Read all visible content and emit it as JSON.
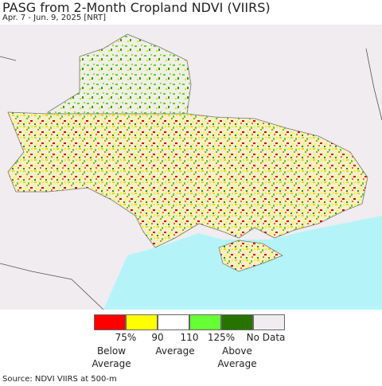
{
  "header": {
    "title": "PASG from 2-Month Cropland NDVI (VIIRS)",
    "subtitle": "Apr. 7 - Jun. 9, 2025 [NRT]"
  },
  "legend": {
    "colors": [
      "#ff0000",
      "#ffff00",
      "#ffffff",
      "#66ff33",
      "#267300",
      "#f0ecf0"
    ],
    "tick_labels": [
      "75%",
      "90",
      "110",
      "125%"
    ],
    "no_data": "No Data",
    "category_labels": [
      "Below Average",
      "Average",
      "Above Average"
    ]
  },
  "footer": {
    "source": "Source: NDVI VIIRS at 500-m"
  }
}
